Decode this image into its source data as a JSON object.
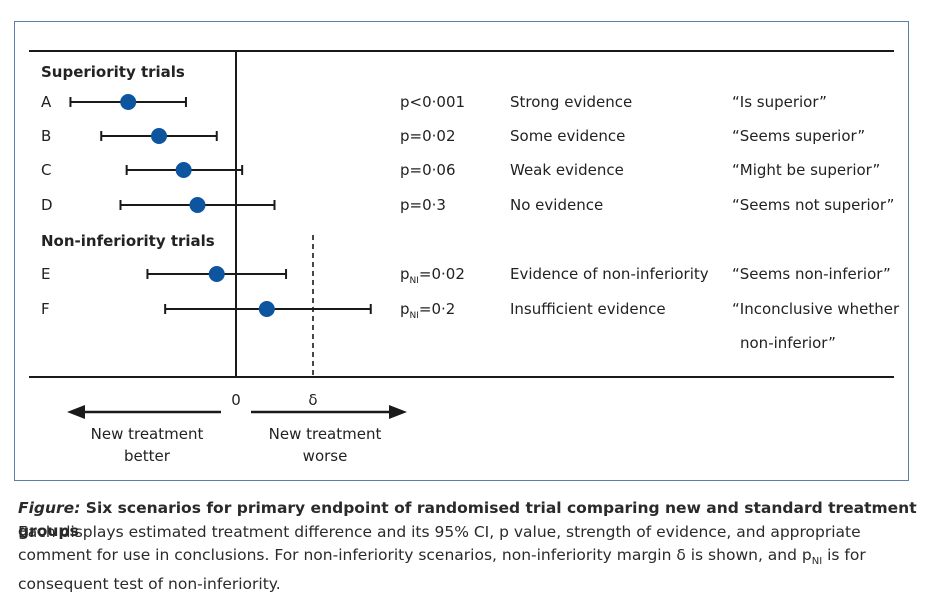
{
  "figure": {
    "caption_label": "Figure:",
    "caption_title": "Six scenarios for primary endpoint of randomised trial comparing new and standard treatment groups",
    "caption_body_1": "Each displays estimated treatment difference and its 95% CI, p value, strength of evidence, and appropriate comment for use in conclusions. For non-inferiority scenarios, non-inferiority margin δ is shown, and p",
    "caption_body_sub": "NI",
    "caption_body_2": " is for consequent test of non-inferiority."
  },
  "chart_data": {
    "type": "forest",
    "groups": [
      {
        "label": "Superiority trials",
        "rows": [
          "A",
          "B",
          "C",
          "D"
        ]
      },
      {
        "label": "Non-inferiority trials",
        "rows": [
          "E",
          "F"
        ]
      }
    ],
    "null_label": "0",
    "margin_label": "δ",
    "margin_value": 1.0,
    "x_range": [
      -2.2,
      2.2
    ],
    "direction_left": [
      "New treatment",
      "better"
    ],
    "direction_right": [
      "New treatment",
      "worse"
    ],
    "colors": {
      "point": "#0e55a0",
      "line": "#1a1a1a"
    },
    "rows": [
      {
        "id": "A",
        "estimate": -1.4,
        "lower": -2.15,
        "upper": -0.65,
        "p_prefix": "p",
        "p_sub": "",
        "p_value": "<0·001",
        "evidence": "Strong evidence",
        "comment": [
          "“Is superior”"
        ]
      },
      {
        "id": "B",
        "estimate": -1.0,
        "lower": -1.75,
        "upper": -0.25,
        "p_prefix": "p",
        "p_sub": "",
        "p_value": "=0·02",
        "evidence": "Some evidence",
        "comment": [
          "“Seems superior”"
        ]
      },
      {
        "id": "C",
        "estimate": -0.68,
        "lower": -1.42,
        "upper": 0.08,
        "p_prefix": "p",
        "p_sub": "",
        "p_value": "=0·06",
        "evidence": "Weak evidence",
        "comment": [
          "“Might be superior”"
        ]
      },
      {
        "id": "D",
        "estimate": -0.5,
        "lower": -1.5,
        "upper": 0.5,
        "p_prefix": "p",
        "p_sub": "",
        "p_value": "=0·3",
        "evidence": "No evidence",
        "comment": [
          "“Seems not superior”"
        ]
      },
      {
        "id": "E",
        "estimate": -0.25,
        "lower": -1.15,
        "upper": 0.65,
        "p_prefix": "p",
        "p_sub": "NI",
        "p_value": "=0·02",
        "evidence": "Evidence of non-inferiority",
        "comment": [
          "“Seems non-inferior”"
        ]
      },
      {
        "id": "F",
        "estimate": 0.4,
        "lower": -0.92,
        "upper": 1.75,
        "p_prefix": "p",
        "p_sub": "NI",
        "p_value": "=0·2",
        "evidence": "Insufficient evidence",
        "comment": [
          "“Inconclusive whether",
          "non-inferior”"
        ]
      }
    ]
  }
}
